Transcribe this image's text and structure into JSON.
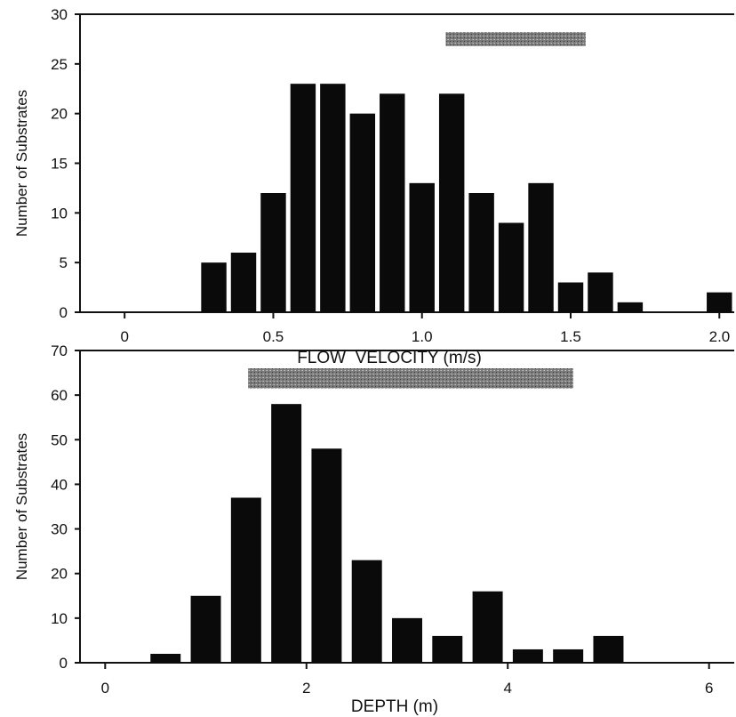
{
  "chart_data": [
    {
      "type": "bar",
      "title": "",
      "xlabel": "FLOW  VELOCITY (m/s)",
      "ylabel": "Number of Substrates",
      "xlim": [
        -0.15,
        2.05
      ],
      "ylim": [
        0,
        30
      ],
      "bar_width": 0.085,
      "x_ticks": [
        {
          "value": 0,
          "label": "0"
        },
        {
          "value": 0.5,
          "label": "0.5"
        },
        {
          "value": 1.0,
          "label": "1.0"
        },
        {
          "value": 1.5,
          "label": "1.5"
        },
        {
          "value": 2.0,
          "label": "2.0"
        }
      ],
      "y_ticks": [
        {
          "value": 0,
          "label": "0"
        },
        {
          "value": 5,
          "label": "5"
        },
        {
          "value": 10,
          "label": "10"
        },
        {
          "value": 15,
          "label": "15"
        },
        {
          "value": 20,
          "label": "20"
        },
        {
          "value": 25,
          "label": "25"
        },
        {
          "value": 30,
          "label": "30"
        }
      ],
      "x": [
        0.3,
        0.4,
        0.5,
        0.6,
        0.7,
        0.8,
        0.9,
        1.0,
        1.1,
        1.2,
        1.3,
        1.4,
        1.5,
        1.6,
        1.7,
        2.0
      ],
      "values": [
        5,
        6,
        12,
        23,
        23,
        20,
        22,
        13,
        22,
        12,
        9,
        13,
        3,
        4,
        1,
        2
      ],
      "range_band": {
        "x_start": 1.08,
        "x_end": 1.55,
        "y_low": 26.8,
        "y_high": 28.2
      },
      "grid": false,
      "colors": {
        "bars": "#0a0a0a",
        "band": "#7a7a7a"
      }
    },
    {
      "type": "bar",
      "title": "",
      "xlabel": "DEPTH (m)",
      "ylabel": "Number of Substrates",
      "xlim": [
        -0.25,
        6.25
      ],
      "ylim": [
        0,
        70
      ],
      "bar_width": 0.3,
      "x_ticks": [
        {
          "value": 0,
          "label": "0"
        },
        {
          "value": 2,
          "label": "2"
        },
        {
          "value": 4,
          "label": "4"
        },
        {
          "value": 6,
          "label": "6"
        }
      ],
      "y_ticks": [
        {
          "value": 0,
          "label": "0"
        },
        {
          "value": 10,
          "label": "10"
        },
        {
          "value": 20,
          "label": "20"
        },
        {
          "value": 30,
          "label": "30"
        },
        {
          "value": 40,
          "label": "40"
        },
        {
          "value": 50,
          "label": "50"
        },
        {
          "value": 60,
          "label": "60"
        },
        {
          "value": 70,
          "label": "70"
        }
      ],
      "x": [
        0.6,
        1.0,
        1.4,
        1.8,
        2.2,
        2.6,
        3.0,
        3.4,
        3.8,
        4.2,
        4.6,
        5.0
      ],
      "values": [
        2,
        15,
        37,
        58,
        48,
        23,
        10,
        6,
        16,
        3,
        3,
        6
      ],
      "range_band": {
        "x_start": 1.42,
        "x_end": 4.65,
        "y_low": 61.5,
        "y_high": 66
      },
      "grid": false,
      "colors": {
        "bars": "#0a0a0a",
        "band": "#7a7a7a"
      }
    }
  ]
}
